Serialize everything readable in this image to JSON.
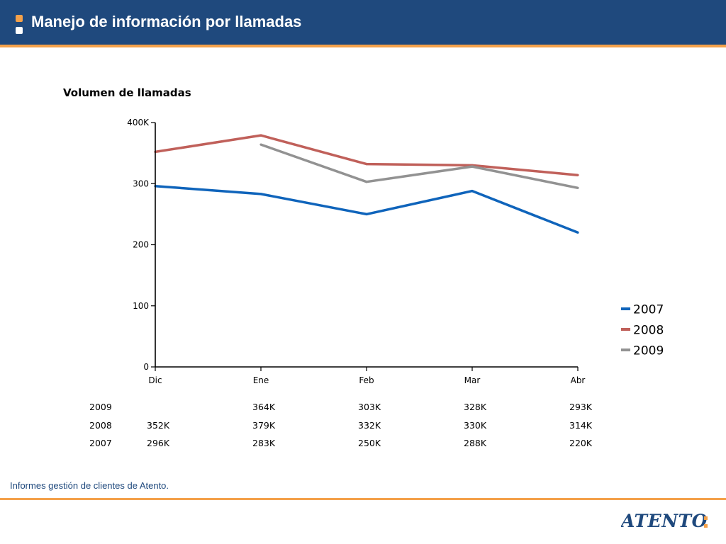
{
  "header": {
    "title": "Manejo de información por llamadas",
    "background_color": "#1f497d",
    "accent_color": "#f4a14a"
  },
  "footer": {
    "note": "Informes gestión de clientes de Atento.",
    "logo_text": "ATENTO"
  },
  "chart_data": {
    "type": "line",
    "title": "Volumen de llamadas",
    "categories": [
      "Dic",
      "Ene",
      "Feb",
      "Mar",
      "Abr"
    ],
    "y_tick_labels": [
      "0",
      "100",
      "200",
      "300",
      "400K"
    ],
    "y_ticks": [
      0,
      100,
      200,
      300,
      400
    ],
    "ylim": [
      0,
      400
    ],
    "y_unit": "K",
    "grid": false,
    "legend_position": "right",
    "series": [
      {
        "name": "2007",
        "color": "#0f64bb",
        "values": [
          296,
          283,
          250,
          288,
          220
        ]
      },
      {
        "name": "2008",
        "color": "#c0605a",
        "values": [
          352,
          379,
          332,
          330,
          314
        ]
      },
      {
        "name": "2009",
        "color": "#929292",
        "values": [
          null,
          364,
          303,
          328,
          293
        ]
      }
    ],
    "table_rows": [
      {
        "label": "2009",
        "cells": [
          "",
          "364K",
          "303K",
          "328K",
          "293K"
        ]
      },
      {
        "label": "2008",
        "cells": [
          "352K",
          "379K",
          "332K",
          "330K",
          "314K"
        ]
      },
      {
        "label": "2007",
        "cells": [
          "296K",
          "283K",
          "250K",
          "288K",
          "220K"
        ]
      }
    ]
  }
}
